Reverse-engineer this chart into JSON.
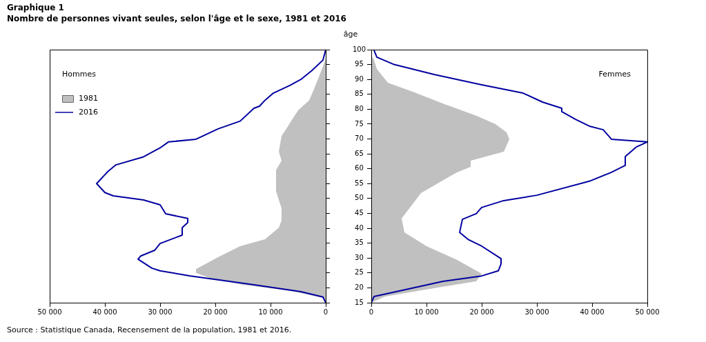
{
  "chart_data": [
    {
      "type": "line",
      "title": "Graphique  1",
      "subtitle": "Nombre de personnes vivant seules, selon l'âge et le sexe, 1981 et 2016",
      "orientation": "horizontal",
      "legend": "top left",
      "tick_labels": "x",
      "annotations": [
        "Hommes",
        "Source : Statistique Canada, Recensement de la population, 1981 et 2016."
      ],
      "xlim": [
        50000,
        0
      ],
      "xticks": [
        {
          "value": 50000,
          "label": "50 000"
        },
        {
          "value": 40000,
          "label": "40 000"
        },
        {
          "value": 30000,
          "label": "30 000"
        },
        {
          "value": 20000,
          "label": "20 000"
        },
        {
          "value": 10000,
          "label": "10 000"
        },
        0
      ],
      "ylim": [
        15,
        100
      ],
      "yticks": [
        15,
        20,
        25,
        30,
        35,
        40,
        45,
        50,
        55,
        60,
        65,
        70,
        75,
        80,
        85,
        90,
        95,
        100
      ],
      "series": [
        {
          "name": "1981",
          "type": "area",
          "color": "#c0c0c0",
          "x": [
            97,
            94.3,
            87.3,
            83,
            79.6,
            76.8,
            73.8,
            71,
            65.7,
            62.7,
            59.5,
            52.5,
            49.5,
            46.7,
            42.6,
            40.2,
            36.3,
            34,
            30.3,
            26.3,
            25,
            23.3,
            21,
            19,
            16.6,
            15
          ],
          "values": [
            0,
            500,
            2000,
            3000,
            5000,
            6000,
            7000,
            8000,
            8500,
            8000,
            9000,
            9000,
            8500,
            8000,
            8000,
            8500,
            11000,
            15500,
            19500,
            23500,
            23500,
            21000,
            15000,
            6500,
            500,
            0
          ]
        },
        {
          "name": "2016",
          "type": "line",
          "color": "#0000a0",
          "x": [
            100,
            96.5,
            93,
            90,
            88,
            85.4,
            83,
            81,
            80.3,
            76,
            73.4,
            69.9,
            69,
            67,
            64,
            61.3,
            59,
            58,
            55,
            52,
            50.9,
            49.5,
            47.9,
            44.9,
            43.3,
            41.9,
            40.2,
            37.7,
            34.9,
            32.6,
            30.7,
            29.6,
            26.6,
            25.7,
            24,
            21,
            18.7,
            16.9,
            15
          ],
          "values": [
            0,
            500,
            2500,
            4500,
            6500,
            9500,
            11000,
            12000,
            13000,
            15500,
            19500,
            23500,
            28500,
            30000,
            33000,
            38000,
            39500,
            40000,
            41500,
            40000,
            38500,
            33000,
            30000,
            29000,
            25000,
            25000,
            26000,
            26000,
            30000,
            31000,
            33500,
            34000,
            31500,
            30000,
            24500,
            13000,
            4500,
            500,
            0
          ]
        }
      ]
    },
    {
      "type": "line",
      "orientation": "horizontal",
      "ylabel": "âge",
      "annotations": [
        "Femmes"
      ],
      "xlim": [
        0,
        50000
      ],
      "xticks": [
        0,
        {
          "value": 10000,
          "label": "10 000"
        },
        {
          "value": 20000,
          "label": "20 000"
        },
        {
          "value": 30000,
          "label": "30 000"
        },
        {
          "value": 40000,
          "label": "40 000"
        },
        {
          "value": 50000,
          "label": "50 000"
        }
      ],
      "ylim": [
        15,
        100
      ],
      "yticks": [
        15,
        20,
        25,
        30,
        35,
        40,
        45,
        50,
        55,
        60,
        65,
        70,
        75,
        80,
        85,
        90,
        95,
        100
      ],
      "series": [
        {
          "type": "area",
          "color": "#c0c0c0",
          "x": [
            98,
            96.5,
            93.5,
            88.9,
            85.9,
            81.9,
            77.8,
            75,
            72.2,
            69.9,
            65.7,
            62.7,
            60.6,
            58.8,
            51.8,
            43.3,
            38.6,
            34,
            29.4,
            24.7,
            22.2,
            19.9,
            17.1,
            15
          ],
          "values": [
            0,
            500,
            1000,
            3000,
            7500,
            13000,
            19000,
            22500,
            24500,
            25000,
            24000,
            18000,
            18000,
            15500,
            9000,
            5500,
            6000,
            10000,
            15500,
            20000,
            19000,
            11500,
            2500,
            0
          ]
        },
        {
          "type": "line",
          "color": "#0000a0",
          "x": [
            99.8,
            97.5,
            95.1,
            91.6,
            88.2,
            85.4,
            82.4,
            80.3,
            79.2,
            76.6,
            74.3,
            73.1,
            69.9,
            69,
            67.3,
            64.1,
            61.1,
            58.8,
            55.8,
            51.1,
            49.3,
            47,
            44.9,
            43,
            38.6,
            36.3,
            34,
            29.8,
            28,
            25.7,
            24,
            22.2,
            18.7,
            17.1,
            15
          ],
          "values": [
            500,
            1000,
            4000,
            11500,
            20000,
            27500,
            31000,
            34500,
            34500,
            37000,
            39500,
            42000,
            43500,
            50000,
            48000,
            46000,
            46000,
            43500,
            39500,
            30000,
            24000,
            20000,
            19000,
            16500,
            16000,
            17500,
            20000,
            23500,
            23500,
            23000,
            20000,
            13000,
            4500,
            500,
            0
          ]
        }
      ]
    }
  ]
}
